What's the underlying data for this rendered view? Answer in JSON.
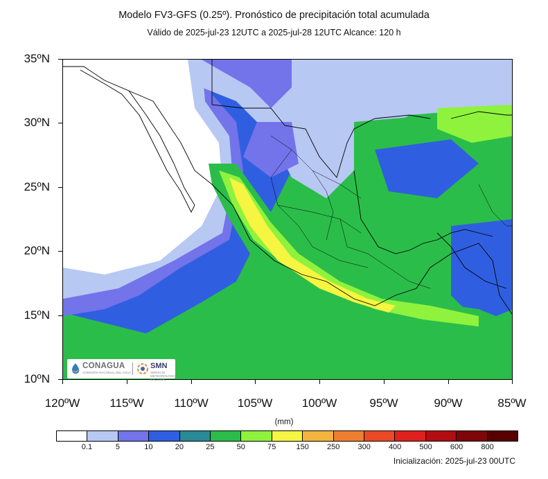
{
  "title": "Modelo FV3-GFS (0.25º). Pronóstico de precipitación total acumulada",
  "subtitle": "Válido de 2025-jul-23 12UTC a 2025-jul-28 12UTC    Alcance: 120 h",
  "axes": {
    "lat_labels": [
      "35ºN",
      "30ºN",
      "25ºN",
      "20ºN",
      "15ºN",
      "10ºN"
    ],
    "lon_labels": [
      "120ºW",
      "115ºW",
      "110ºW",
      "105ºW",
      "100ºW",
      "95ºW",
      "90ºW",
      "85ºW"
    ],
    "lat_range": [
      10,
      35
    ],
    "lon_range": [
      -120,
      -85
    ]
  },
  "colorbar": {
    "units": "(mm)",
    "thresholds": [
      "0.1",
      "5",
      "10",
      "20",
      "25",
      "50",
      "75",
      "150",
      "250",
      "300",
      "400",
      "500",
      "600",
      "800"
    ],
    "colors": [
      "#ffffff",
      "#b7c8f3",
      "#7373ea",
      "#2f5fe0",
      "#2a8a98",
      "#2bbd4a",
      "#8ff23d",
      "#f5f542",
      "#f2b43c",
      "#ef7f2e",
      "#ea4a25",
      "#e0201c",
      "#b10d12",
      "#7e0509",
      "#560004"
    ]
  },
  "initialization": "Inicialización: 2025-jul-23 00UTC",
  "logos": {
    "conagua": "CONAGUA",
    "smn": "SMN",
    "conagua_tagline": "COMISIÓN NACIONAL DEL AGUA",
    "smn_tagline": "SERVICIO METEOROLÓGICO NACIONAL"
  }
}
